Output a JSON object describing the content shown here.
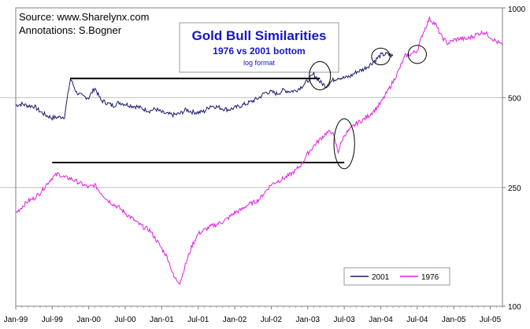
{
  "chart_data": {
    "type": "line",
    "title": "Gold Bull Similarities",
    "subtitle": "1976 vs 2001 bottom",
    "scale_note": "log format",
    "source_line": "Source: www.Sharelynx.com",
    "annotation_line": "Annotations: S.Bogner",
    "y_scale": "log",
    "ylim": [
      100,
      1000
    ],
    "y_ticks": [
      {
        "value": 100,
        "label": "100"
      },
      {
        "value": 250,
        "label": "250"
      },
      {
        "value": 500,
        "label": "500"
      },
      {
        "value": 1000,
        "label": "1000"
      }
    ],
    "xlim": [
      "1999-01",
      "2005-09"
    ],
    "x_ticks": [
      {
        "month": "1999-01",
        "label": "Jan-99"
      },
      {
        "month": "1999-07",
        "label": "Jul-99"
      },
      {
        "month": "2000-01",
        "label": "Jan-00"
      },
      {
        "month": "2000-07",
        "label": "Jul-00"
      },
      {
        "month": "2001-01",
        "label": "Jan-01"
      },
      {
        "month": "2001-07",
        "label": "Jul-01"
      },
      {
        "month": "2002-01",
        "label": "Jan-02"
      },
      {
        "month": "2002-07",
        "label": "Jul-02"
      },
      {
        "month": "2003-01",
        "label": "Jan-03"
      },
      {
        "month": "2003-07",
        "label": "Jul-03"
      },
      {
        "month": "2004-01",
        "label": "Jan-04"
      },
      {
        "month": "2004-07",
        "label": "Jul-04"
      },
      {
        "month": "2005-01",
        "label": "Jan-05"
      },
      {
        "month": "2005-07",
        "label": "Jul-05"
      }
    ],
    "grid": true,
    "legend_position": "bottom-right",
    "series": [
      {
        "name": "2001",
        "color": "#1a1a6e",
        "points": [
          [
            "1999-01",
            472
          ],
          [
            "1999-02",
            476
          ],
          [
            "1999-03",
            470
          ],
          [
            "1999-04",
            468
          ],
          [
            "1999-05",
            450
          ],
          [
            "1999-06",
            436
          ],
          [
            "1999-07",
            428
          ],
          [
            "1999-08",
            430
          ],
          [
            "1999-09",
            432
          ],
          [
            "1999-10",
            580
          ],
          [
            "1999-11",
            520
          ],
          [
            "1999-12",
            505
          ],
          [
            "2000-01",
            500
          ],
          [
            "2000-02",
            540
          ],
          [
            "2000-03",
            490
          ],
          [
            "2000-04",
            480
          ],
          [
            "2000-05",
            470
          ],
          [
            "2000-06",
            482
          ],
          [
            "2000-07",
            476
          ],
          [
            "2000-08",
            470
          ],
          [
            "2000-09",
            466
          ],
          [
            "2000-10",
            458
          ],
          [
            "2000-11",
            452
          ],
          [
            "2000-12",
            458
          ],
          [
            "2001-01",
            446
          ],
          [
            "2001-02",
            440
          ],
          [
            "2001-03",
            438
          ],
          [
            "2001-04",
            442
          ],
          [
            "2001-05",
            456
          ],
          [
            "2001-06",
            448
          ],
          [
            "2001-07",
            446
          ],
          [
            "2001-08",
            450
          ],
          [
            "2001-09",
            470
          ],
          [
            "2001-10",
            466
          ],
          [
            "2001-11",
            460
          ],
          [
            "2001-12",
            456
          ],
          [
            "2002-01",
            462
          ],
          [
            "2002-02",
            470
          ],
          [
            "2002-03",
            478
          ],
          [
            "2002-04",
            488
          ],
          [
            "2002-05",
            500
          ],
          [
            "2002-06",
            520
          ],
          [
            "2002-07",
            522
          ],
          [
            "2002-08",
            515
          ],
          [
            "2002-09",
            530
          ],
          [
            "2002-10",
            525
          ],
          [
            "2002-11",
            528
          ],
          [
            "2002-12",
            545
          ],
          [
            "2003-01",
            570
          ],
          [
            "2003-02",
            600
          ],
          [
            "2003-03",
            565
          ],
          [
            "2003-04",
            545
          ],
          [
            "2003-05",
            570
          ],
          [
            "2003-06",
            585
          ],
          [
            "2003-07",
            582
          ],
          [
            "2003-08",
            590
          ],
          [
            "2003-09",
            610
          ],
          [
            "2003-10",
            620
          ],
          [
            "2003-11",
            640
          ],
          [
            "2003-12",
            665
          ],
          [
            "2004-01",
            695
          ],
          [
            "2004-02",
            700
          ],
          [
            "2004-03",
            690
          ]
        ]
      },
      {
        "name": "1976",
        "color": "#e020e0",
        "points": [
          [
            "1999-01",
            205
          ],
          [
            "1999-02",
            215
          ],
          [
            "1999-03",
            225
          ],
          [
            "1999-04",
            230
          ],
          [
            "1999-05",
            240
          ],
          [
            "1999-06",
            255
          ],
          [
            "1999-07",
            270
          ],
          [
            "1999-08",
            278
          ],
          [
            "1999-09",
            270
          ],
          [
            "1999-10",
            268
          ],
          [
            "1999-11",
            262
          ],
          [
            "1999-12",
            256
          ],
          [
            "2000-01",
            250
          ],
          [
            "2000-02",
            255
          ],
          [
            "2000-03",
            240
          ],
          [
            "2000-04",
            228
          ],
          [
            "2000-05",
            220
          ],
          [
            "2000-06",
            214
          ],
          [
            "2000-07",
            205
          ],
          [
            "2000-08",
            198
          ],
          [
            "2000-09",
            190
          ],
          [
            "2000-10",
            184
          ],
          [
            "2000-11",
            180
          ],
          [
            "2000-12",
            168
          ],
          [
            "2001-01",
            156
          ],
          [
            "2001-02",
            145
          ],
          [
            "2001-03",
            125
          ],
          [
            "2001-04",
            120
          ],
          [
            "2001-05",
            140
          ],
          [
            "2001-06",
            160
          ],
          [
            "2001-07",
            175
          ],
          [
            "2001-08",
            180
          ],
          [
            "2001-09",
            185
          ],
          [
            "2001-10",
            188
          ],
          [
            "2001-11",
            192
          ],
          [
            "2001-12",
            198
          ],
          [
            "2002-01",
            206
          ],
          [
            "2002-02",
            210
          ],
          [
            "2002-03",
            218
          ],
          [
            "2002-04",
            222
          ],
          [
            "2002-05",
            228
          ],
          [
            "2002-06",
            242
          ],
          [
            "2002-07",
            256
          ],
          [
            "2002-08",
            262
          ],
          [
            "2002-09",
            268
          ],
          [
            "2002-10",
            275
          ],
          [
            "2002-11",
            285
          ],
          [
            "2002-12",
            300
          ],
          [
            "2003-01",
            325
          ],
          [
            "2003-02",
            345
          ],
          [
            "2003-03",
            362
          ],
          [
            "2003-04",
            380
          ],
          [
            "2003-05",
            385
          ],
          [
            "2003-06",
            330
          ],
          [
            "2003-07",
            375
          ],
          [
            "2003-08",
            392
          ],
          [
            "2003-09",
            410
          ],
          [
            "2003-10",
            420
          ],
          [
            "2003-11",
            435
          ],
          [
            "2003-12",
            455
          ],
          [
            "2004-01",
            480
          ],
          [
            "2004-02",
            520
          ],
          [
            "2004-03",
            565
          ],
          [
            "2004-04",
            620
          ],
          [
            "2004-05",
            690
          ],
          [
            "2004-06",
            700
          ],
          [
            "2004-07",
            720
          ],
          [
            "2004-08",
            830
          ],
          [
            "2004-09",
            920
          ],
          [
            "2004-10",
            880
          ],
          [
            "2004-11",
            800
          ],
          [
            "2004-12",
            760
          ],
          [
            "2005-01",
            780
          ],
          [
            "2005-02",
            790
          ],
          [
            "2005-03",
            785
          ],
          [
            "2005-04",
            800
          ],
          [
            "2005-05",
            820
          ],
          [
            "2005-06",
            830
          ],
          [
            "2005-07",
            800
          ],
          [
            "2005-08",
            770
          ],
          [
            "2005-09",
            750
          ]
        ]
      }
    ],
    "reference_lines": [
      {
        "from": "1999-10",
        "to": "2003-03",
        "value": 580
      },
      {
        "from": "1999-07",
        "to": "2003-07",
        "value": 303
      }
    ],
    "ellipses": [
      {
        "center": "2003-03",
        "value": 590,
        "span_months": 3.5,
        "ratio_high": 1.12,
        "ratio_low": 0.9
      },
      {
        "center": "2004-01",
        "value": 685,
        "span_months": 3.0,
        "ratio_high": 1.07,
        "ratio_low": 0.94
      },
      {
        "center": "2004-07",
        "value": 700,
        "span_months": 3.0,
        "ratio_high": 1.07,
        "ratio_low": 0.93
      },
      {
        "center": "2003-07",
        "value": 340,
        "span_months": 3.4,
        "ratio_high": 1.25,
        "ratio_low": 0.85
      }
    ]
  }
}
